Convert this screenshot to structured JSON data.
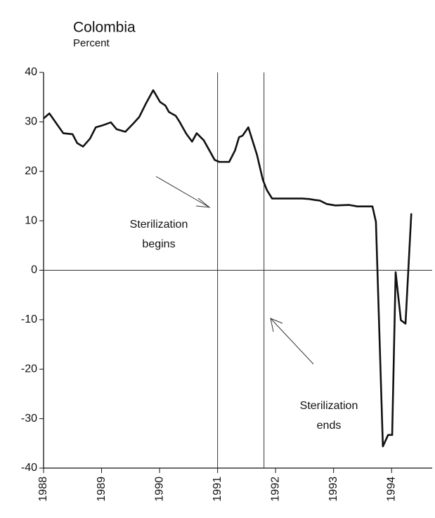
{
  "chart_data": {
    "type": "line",
    "title": "Colombia",
    "subtitle": "Percent",
    "x": [
      1988.0,
      1988.1,
      1988.22,
      1988.34,
      1988.5,
      1988.58,
      1988.68,
      1988.8,
      1988.9,
      1989.02,
      1989.16,
      1989.26,
      1989.41,
      1989.55,
      1989.65,
      1989.76,
      1989.89,
      1990.01,
      1990.1,
      1990.16,
      1990.28,
      1990.35,
      1990.46,
      1990.56,
      1990.64,
      1990.76,
      1990.86,
      1990.95,
      1991.03,
      1991.2,
      1991.3,
      1991.37,
      1991.43,
      1991.53,
      1991.6,
      1991.68,
      1991.78,
      1991.85,
      1991.94,
      1992.22,
      1992.46,
      1992.58,
      1992.68,
      1992.76,
      1992.88,
      1993.03,
      1993.27,
      1993.41,
      1993.67,
      1993.73,
      1993.85,
      1993.94,
      1994.01,
      1994.07,
      1994.16,
      1994.24,
      1994.34
    ],
    "series": [
      {
        "color": "#111111",
        "values": [
          30.7,
          31.7,
          29.7,
          27.7,
          27.5,
          25.7,
          25.0,
          26.6,
          28.9,
          29.3,
          29.9,
          28.5,
          28.0,
          29.7,
          31.0,
          33.6,
          36.4,
          34.0,
          33.3,
          32.0,
          31.2,
          29.9,
          27.6,
          26.0,
          27.7,
          26.3,
          24.2,
          22.3,
          21.9,
          21.9,
          24.2,
          26.9,
          27.2,
          28.9,
          26.3,
          23.3,
          18.3,
          16.2,
          14.5,
          14.5,
          14.5,
          14.4,
          14.2,
          14.1,
          13.4,
          13.1,
          13.2,
          12.9,
          12.9,
          9.8,
          -35.6,
          -33.3,
          -33.3,
          -0.4,
          -10.1,
          -10.8,
          11.5
        ]
      }
    ],
    "xlim": [
      1988,
      1994.7
    ],
    "xticks": [
      1988,
      1989,
      1990,
      1991,
      1992,
      1993,
      1994
    ],
    "ylim": [
      -40,
      40
    ],
    "yticks": [
      -40,
      -30,
      -20,
      -10,
      0,
      10,
      20,
      30,
      40
    ],
    "vlines": [
      1991,
      1991.8
    ],
    "hline": 0,
    "annotations": [
      [
        "Sterilization",
        "begins"
      ],
      [
        "Sterilization",
        "ends"
      ]
    ]
  }
}
